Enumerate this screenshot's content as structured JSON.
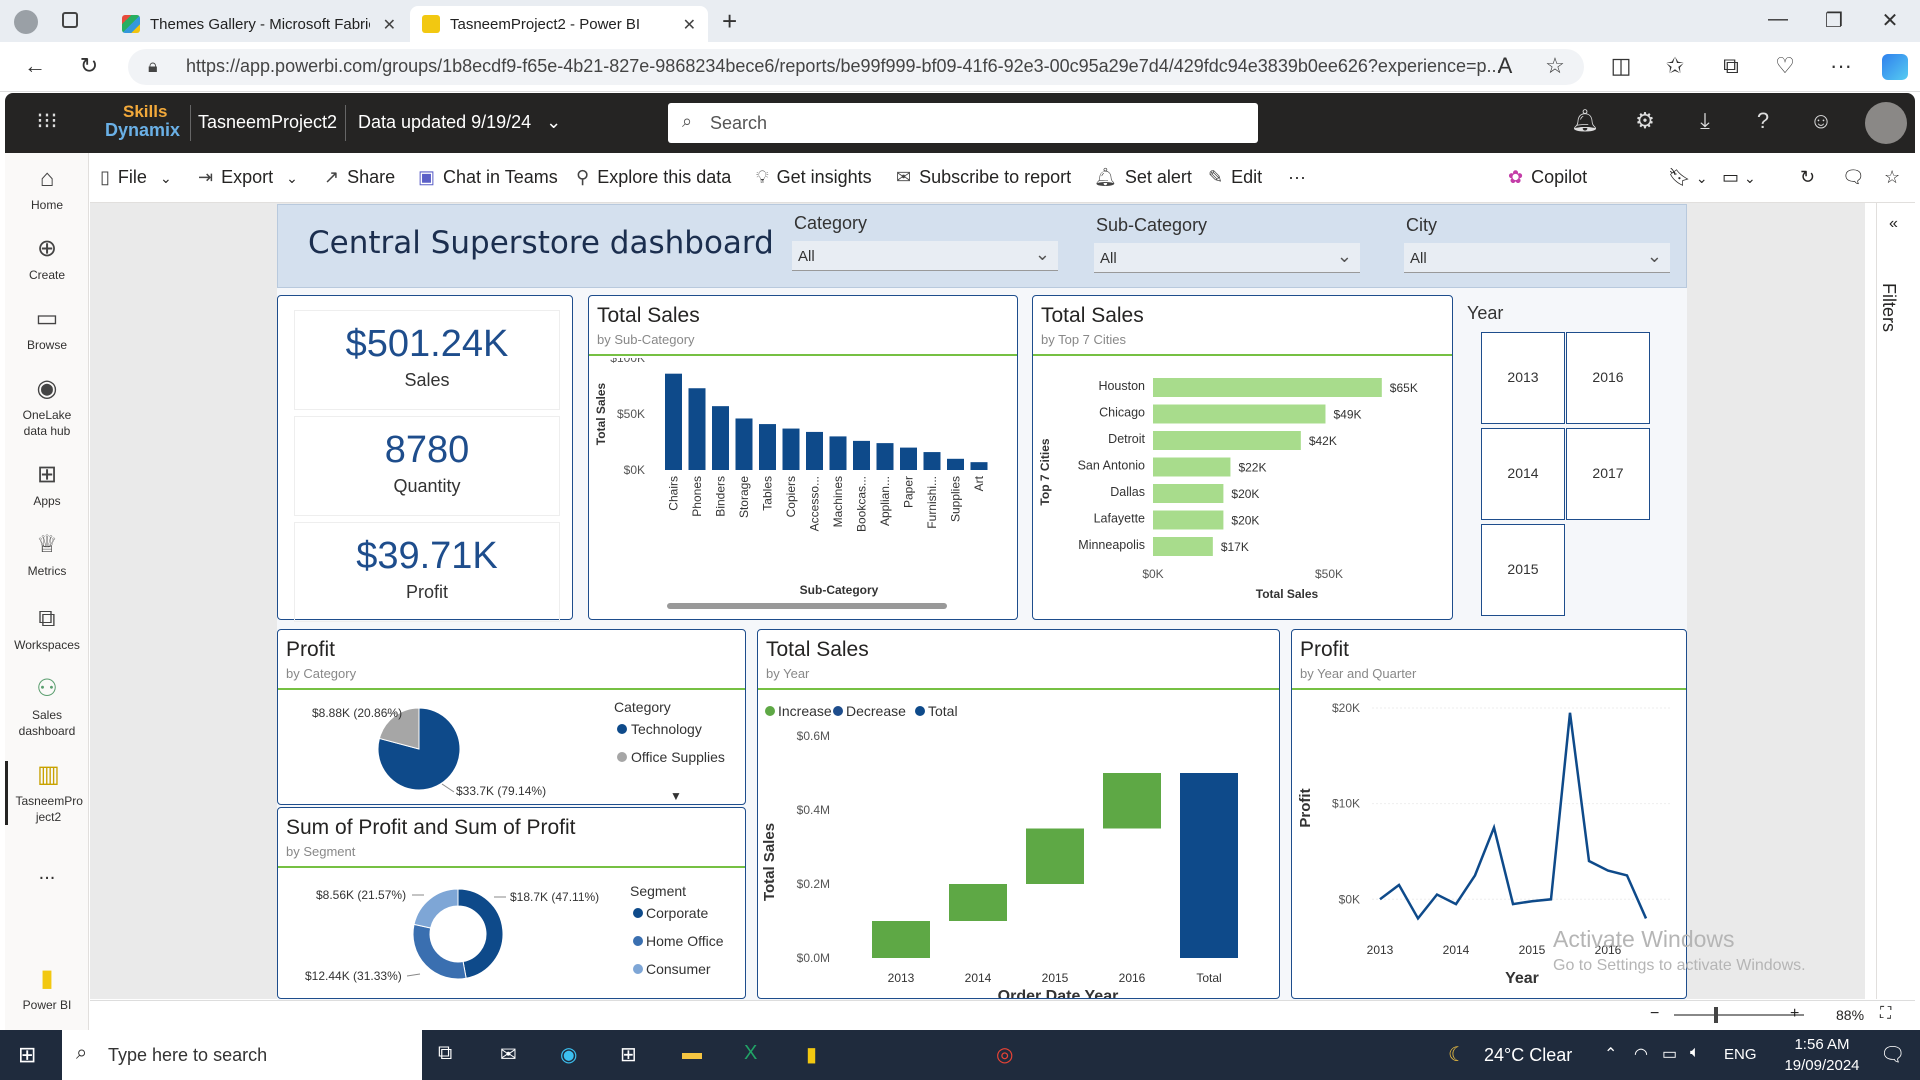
{
  "browser": {
    "tabs": [
      {
        "title": "Themes Gallery - Microsoft Fabric"
      },
      {
        "title": "TasneemProject2 - Power BI"
      }
    ],
    "url": "https://app.powerbi.com/groups/1b8ecdf9-f65e-4b21-827e-9868234bece6/reports/be99f999-bf09-41f6-92e3-00c95a29e7d4/429fdc94e3839b0ee626?experience=p..."
  },
  "header": {
    "brand_line1": "Skills",
    "brand_line2": "Dynamix",
    "workspace": "TasneemProject2",
    "data_updated": "Data updated 9/19/24",
    "search_placeholder": "Search"
  },
  "leftnav": {
    "items": [
      {
        "label": "Home",
        "icon": "home-icon"
      },
      {
        "label": "Create",
        "icon": "plus-circle-icon"
      },
      {
        "label": "Browse",
        "icon": "folder-icon"
      },
      {
        "label": "OneLake data hub",
        "icon": "onelake-icon"
      },
      {
        "label": "Apps",
        "icon": "apps-icon"
      },
      {
        "label": "Metrics",
        "icon": "trophy-icon"
      },
      {
        "label": "Workspaces",
        "icon": "workspaces-icon"
      },
      {
        "label": "Sales dashboard",
        "icon": "people-icon"
      },
      {
        "label": "TasneemPro ject2",
        "icon": "report-icon"
      }
    ],
    "more": "...",
    "footer": "Power BI"
  },
  "actionbar": {
    "file": "File",
    "export": "Export",
    "share": "Share",
    "teams": "Chat in Teams",
    "explore": "Explore this data",
    "insights": "Get insights",
    "subscribe": "Subscribe to report",
    "alert": "Set alert",
    "edit": "Edit",
    "more": "···",
    "copilot": "Copilot"
  },
  "report": {
    "title": "Central Superstore dashboard",
    "slicers": [
      {
        "label": "Category",
        "value": "All"
      },
      {
        "label": "Sub-Category",
        "value": "All"
      },
      {
        "label": "City",
        "value": "All"
      }
    ],
    "kpis": [
      {
        "value": "$501.24K",
        "label": "Sales"
      },
      {
        "value": "8780",
        "label": "Quantity"
      },
      {
        "value": "$39.71K",
        "label": "Profit"
      }
    ],
    "year_slicer": {
      "label": "Year",
      "years": [
        "2013",
        "2016",
        "2014",
        "2017",
        "2015"
      ]
    },
    "filters_label": "Filters"
  },
  "chart_data": [
    {
      "type": "bar",
      "title": "Total Sales",
      "subtitle": "by Sub-Category",
      "xlabel": "Sub-Category",
      "ylabel": "Total Sales",
      "yticks": [
        "$100K",
        "$50K",
        "$0K"
      ],
      "ylim": [
        0,
        100000
      ],
      "categories": [
        "Chairs",
        "Phones",
        "Binders",
        "Storage",
        "Tables",
        "Copiers",
        "Accesso...",
        "Machines",
        "Bookcas...",
        "Applian...",
        "Paper",
        "Furnishi...",
        "Supplies",
        "Art"
      ],
      "values": [
        86000,
        73000,
        57000,
        46000,
        41000,
        37000,
        34000,
        30000,
        26000,
        24000,
        20000,
        16000,
        10000,
        7000
      ]
    },
    {
      "type": "bar",
      "orientation": "horizontal",
      "title": "Total Sales",
      "subtitle": "by Top 7 Cities",
      "xlabel": "Total Sales",
      "ylabel": "Top 7 Cities",
      "xticks": [
        "$0K",
        "$50K"
      ],
      "categories": [
        "Houston",
        "Chicago",
        "Detroit",
        "San Antonio",
        "Dallas",
        "Lafayette",
        "Minneapolis"
      ],
      "values": [
        65000,
        49000,
        42000,
        22000,
        20000,
        20000,
        17000
      ],
      "labels": [
        "$65K",
        "$49K",
        "$42K",
        "$22K",
        "$20K",
        "$20K",
        "$17K"
      ]
    },
    {
      "type": "pie",
      "title": "Profit",
      "subtitle": "by Category",
      "legend_title": "Category",
      "series": [
        {
          "name": "Technology",
          "value": 33.7,
          "label": "$33.7K (79.14%)",
          "color": "#0e4a8a"
        },
        {
          "name": "Office Supplies",
          "value": 8.88,
          "label": "$8.88K (20.86%)",
          "color": "#a6a6a6"
        }
      ]
    },
    {
      "type": "pie",
      "title": "Sum of Profit and Sum of Profit",
      "subtitle": "by Segment",
      "legend_title": "Segment",
      "series": [
        {
          "name": "Corporate",
          "value": 18.7,
          "label": "$18.7K (47.11%)",
          "color": "#0e4a8a"
        },
        {
          "name": "Home Office",
          "value": 12.44,
          "label": "$12.44K (31.33%)",
          "color": "#3a6fb0"
        },
        {
          "name": "Consumer",
          "value": 8.56,
          "label": "$8.56K (21.57%)",
          "color": "#7ea6d6"
        }
      ]
    },
    {
      "type": "bar",
      "subtype": "waterfall",
      "title": "Total Sales",
      "subtitle": "by Year",
      "xlabel": "Order Date Year",
      "ylabel": "Total Sales",
      "yticks": [
        "$0.6M",
        "$0.4M",
        "$0.2M",
        "$0.0M"
      ],
      "ylim": [
        0,
        0.6
      ],
      "legend": [
        "Increase",
        "Decrease",
        "Total"
      ],
      "categories": [
        "2013",
        "2014",
        "2015",
        "2016",
        "Total"
      ],
      "values": [
        0.1,
        0.1,
        0.15,
        0.15,
        0.5
      ],
      "colors": {
        "increase": "#5ea845",
        "decrease": "#1e4d8c",
        "total": "#0e4a8a"
      }
    },
    {
      "type": "line",
      "title": "Profit",
      "subtitle": "by Year and Quarter",
      "xlabel": "Year",
      "ylabel": "Profit",
      "yticks": [
        "$20K",
        "$10K",
        "$0K"
      ],
      "ylim": [
        -3000,
        20000
      ],
      "xticks": [
        "2013",
        "2014",
        "2015",
        "2016"
      ],
      "values": [
        0,
        1500,
        -2000,
        500,
        -500,
        2500,
        7500,
        -500,
        -200,
        0,
        19500,
        4000,
        3000,
        2500,
        -2000
      ]
    }
  ],
  "statusbar": {
    "zoom": "88%"
  },
  "watermark": {
    "line1": "Activate Windows",
    "line2": "Go to Settings to activate Windows."
  },
  "taskbar": {
    "search_placeholder": "Type here to search",
    "weather": "24°C  Clear",
    "lang": "ENG",
    "time": "1:56 AM",
    "date": "19/09/2024"
  },
  "colors": {
    "accent": "#1e4d8c",
    "green": "#76c043",
    "pbi_header": "#252423"
  }
}
